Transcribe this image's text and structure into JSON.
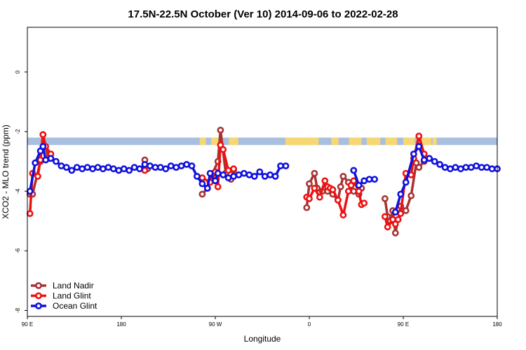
{
  "chart_data": {
    "type": "line",
    "title": "17.5N-22.5N October (Ver 10)   2014-09-06 to 2022-02-28",
    "xlabel": "Longitude",
    "ylabel": "XCO2 - MLO trend (ppm)",
    "xlim": [
      90,
      540
    ],
    "ylim": [
      -8.2,
      1.5
    ],
    "x_ticks": [
      {
        "value": 90,
        "label": "90 E"
      },
      {
        "value": 180,
        "label": "180"
      },
      {
        "value": 270,
        "label": "90 W"
      },
      {
        "value": 360,
        "label": "0"
      },
      {
        "value": 450,
        "label": "90 E"
      },
      {
        "value": 540,
        "label": "180"
      }
    ],
    "y_ticks": [
      {
        "value": 0,
        "label": "0"
      },
      {
        "value": -2,
        "label": "-2"
      },
      {
        "value": -4,
        "label": "-4"
      },
      {
        "value": -6,
        "label": "-6"
      },
      {
        "value": -8,
        "label": "-8"
      }
    ],
    "grid": false,
    "legend_position": "bottom-left",
    "land_sea_band": {
      "y_range": [
        -2.45,
        -2.2
      ],
      "ocean_color": "#a9bfe0",
      "land_color": "#f7d774",
      "land_segments": [
        [
          255,
          261
        ],
        [
          266,
          277
        ],
        [
          283,
          292
        ],
        [
          337,
          369
        ],
        [
          381,
          388
        ],
        [
          398,
          410
        ],
        [
          415,
          428
        ],
        [
          433,
          444
        ],
        [
          450,
          461
        ],
        [
          468,
          477
        ],
        [
          478,
          482
        ]
      ]
    },
    "series": [
      {
        "name": "Land Nadir",
        "color": "#a83232",
        "segments": [
          [
            [
              92.5,
              -4.1
            ],
            [
              95,
              -4.1
            ],
            [
              102.5,
              -3.0
            ],
            [
              105,
              -2.1
            ],
            [
              110,
              -2.9
            ]
          ],
          [
            [
              202.5,
              -2.95
            ],
            [
              205,
              -3.25
            ]
          ],
          [
            [
              257.5,
              -4.1
            ],
            [
              262.5,
              -3.9
            ],
            [
              267.5,
              -3.4
            ],
            [
              272.5,
              -3.0
            ],
            [
              275,
              -1.95
            ],
            [
              280,
              -3.4
            ],
            [
              285,
              -3.6
            ],
            [
              287.5,
              -3.3
            ]
          ],
          [
            [
              357.5,
              -4.55
            ],
            [
              360,
              -3.75
            ],
            [
              365,
              -3.4
            ],
            [
              367.5,
              -3.9
            ],
            [
              372.5,
              -4.0
            ],
            [
              377.5,
              -4.0
            ],
            [
              382.5,
              -4.1
            ],
            [
              387.5,
              -4.3
            ],
            [
              390,
              -3.85
            ],
            [
              392.5,
              -3.5
            ],
            [
              397.5,
              -3.7
            ],
            [
              402.5,
              -4.0
            ],
            [
              407.5,
              -4.1
            ],
            [
              410,
              -3.9
            ]
          ],
          [
            [
              432.5,
              -4.25
            ],
            [
              435,
              -4.85
            ],
            [
              437.5,
              -5.0
            ],
            [
              440,
              -4.65
            ],
            [
              442.5,
              -5.4
            ],
            [
              447.5,
              -4.5
            ],
            [
              452.5,
              -4.65
            ],
            [
              457.5,
              -4.15
            ],
            [
              462.5,
              -3.05
            ],
            [
              465,
              -3.2
            ],
            [
              470,
              -3.0
            ]
          ]
        ]
      },
      {
        "name": "Land Glint",
        "color": "#ee1111",
        "segments": [
          [
            [
              92.5,
              -4.75
            ],
            [
              95,
              -3.4
            ],
            [
              100,
              -3.5
            ],
            [
              102.5,
              -2.95
            ],
            [
              105,
              -2.1
            ],
            [
              107.5,
              -2.5
            ],
            [
              112.5,
              -2.75
            ]
          ],
          [
            [
              202.5,
              -3.3
            ]
          ],
          [
            [
              257.5,
              -3.55
            ],
            [
              265,
              -3.7
            ],
            [
              270,
              -3.35
            ],
            [
              272.5,
              -3.85
            ],
            [
              275,
              -2.45
            ],
            [
              277.5,
              -2.6
            ],
            [
              282.5,
              -3.3
            ],
            [
              287.5,
              -3.25
            ]
          ],
          [
            [
              357.5,
              -4.2
            ],
            [
              360,
              -4.25
            ],
            [
              365,
              -3.9
            ],
            [
              370,
              -4.2
            ],
            [
              375,
              -3.65
            ],
            [
              377.5,
              -3.85
            ],
            [
              380,
              -3.9
            ],
            [
              382.5,
              -3.95
            ],
            [
              387.5,
              -4.3
            ],
            [
              392.5,
              -4.8
            ],
            [
              397.5,
              -4.0
            ],
            [
              400,
              -3.8
            ],
            [
              402.5,
              -3.65
            ],
            [
              407.5,
              -4.0
            ],
            [
              410,
              -4.45
            ],
            [
              412.5,
              -4.4
            ]
          ],
          [
            [
              432.5,
              -4.85
            ],
            [
              435,
              -5.2
            ],
            [
              440,
              -4.95
            ],
            [
              442.5,
              -5.1
            ],
            [
              445,
              -4.95
            ],
            [
              447.5,
              -4.75
            ],
            [
              452.5,
              -3.4
            ],
            [
              457.5,
              -3.45
            ],
            [
              460,
              -2.9
            ],
            [
              465,
              -2.15
            ],
            [
              470,
              -2.75
            ]
          ]
        ]
      },
      {
        "name": "Ocean Glint",
        "color": "#1010dd",
        "segments": [
          [
            [
              92.5,
              -4.0
            ],
            [
              97.5,
              -3.05
            ],
            [
              102.5,
              -2.65
            ],
            [
              105,
              -2.5
            ],
            [
              107.5,
              -2.95
            ],
            [
              112.5,
              -2.9
            ],
            [
              117.5,
              -3.0
            ],
            [
              122.5,
              -3.15
            ],
            [
              127.5,
              -3.2
            ],
            [
              132.5,
              -3.3
            ],
            [
              137.5,
              -3.2
            ],
            [
              142.5,
              -3.25
            ],
            [
              147.5,
              -3.2
            ],
            [
              152.5,
              -3.25
            ],
            [
              157.5,
              -3.2
            ],
            [
              162.5,
              -3.25
            ],
            [
              167.5,
              -3.2
            ],
            [
              172.5,
              -3.25
            ],
            [
              177.5,
              -3.3
            ],
            [
              182.5,
              -3.25
            ],
            [
              187.5,
              -3.3
            ],
            [
              192.5,
              -3.2
            ],
            [
              197.5,
              -3.25
            ],
            [
              202.5,
              -3.1
            ],
            [
              207.5,
              -3.15
            ],
            [
              212.5,
              -3.2
            ],
            [
              217.5,
              -3.2
            ],
            [
              222.5,
              -3.25
            ],
            [
              227.5,
              -3.15
            ],
            [
              232.5,
              -3.2
            ],
            [
              237.5,
              -3.15
            ],
            [
              242.5,
              -3.1
            ],
            [
              247.5,
              -3.15
            ],
            [
              252.5,
              -3.5
            ],
            [
              257.5,
              -3.75
            ],
            [
              262.5,
              -3.9
            ],
            [
              265,
              -3.4
            ],
            [
              270,
              -3.65
            ],
            [
              272.5,
              -3.4
            ],
            [
              277.5,
              -3.45
            ],
            [
              282.5,
              -3.55
            ],
            [
              287.5,
              -3.5
            ],
            [
              292.5,
              -3.45
            ],
            [
              297.5,
              -3.4
            ],
            [
              302.5,
              -3.45
            ],
            [
              307.5,
              -3.5
            ],
            [
              312.5,
              -3.35
            ],
            [
              317.5,
              -3.5
            ],
            [
              322.5,
              -3.45
            ],
            [
              327.5,
              -3.5
            ],
            [
              332.5,
              -3.15
            ],
            [
              337.5,
              -3.15
            ]
          ],
          [
            [
              402.5,
              -3.3
            ],
            [
              407.5,
              -3.8
            ],
            [
              412.5,
              -3.65
            ],
            [
              417.5,
              -3.6
            ],
            [
              422.5,
              -3.6
            ]
          ],
          [
            [
              442.5,
              -4.7
            ],
            [
              447.5,
              -4.1
            ],
            [
              452.5,
              -3.7
            ],
            [
              460,
              -2.75
            ],
            [
              465,
              -2.5
            ],
            [
              470,
              -2.95
            ],
            [
              475,
              -2.9
            ],
            [
              480,
              -3.0
            ],
            [
              485,
              -3.1
            ],
            [
              490,
              -3.2
            ],
            [
              495,
              -3.25
            ],
            [
              500,
              -3.2
            ],
            [
              505,
              -3.25
            ],
            [
              510,
              -3.2
            ],
            [
              515,
              -3.2
            ],
            [
              520,
              -3.15
            ],
            [
              525,
              -3.2
            ],
            [
              530,
              -3.2
            ],
            [
              535,
              -3.25
            ],
            [
              540,
              -3.25
            ]
          ]
        ]
      }
    ]
  }
}
